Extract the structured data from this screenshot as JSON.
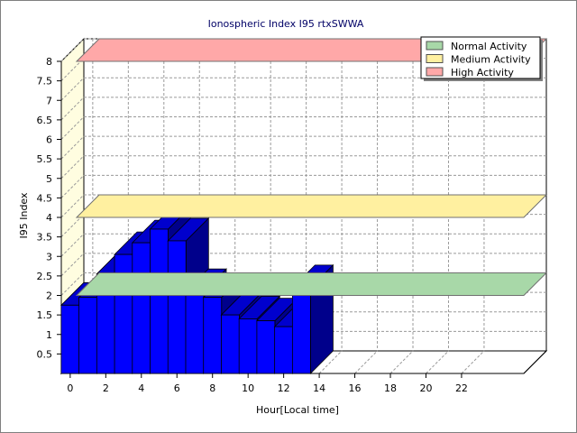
{
  "chart_data": {
    "type": "bar",
    "style": "3d",
    "title": "Ionospheric Index I95 rtxSWWA",
    "xlabel": "Hour[Local time]",
    "ylabel": "I95 Index",
    "xlim": [
      -0.5,
      25.5
    ],
    "ylim": [
      0,
      8
    ],
    "y_ticks": [
      "0.5",
      "1",
      "1.5",
      "2",
      "2.5",
      "3",
      "3.5",
      "4",
      "4.5",
      "5",
      "5.5",
      "6",
      "6.5",
      "7",
      "7.5",
      "8"
    ],
    "x_ticks": [
      "0",
      "2",
      "4",
      "6",
      "8",
      "10",
      "12",
      "14",
      "16",
      "18",
      "20",
      "22"
    ],
    "grid": true,
    "legend_position": "top-right",
    "legend": [
      {
        "label": "Normal Activity",
        "color": "#a8d8a8"
      },
      {
        "label": "Medium Activity",
        "color": "#fff0a0"
      },
      {
        "label": "High Activity",
        "color": "#ffa8a8"
      }
    ],
    "threshold_bands": [
      {
        "name": "Normal Activity",
        "value": 2,
        "color": "#a8d8a8"
      },
      {
        "name": "Medium Activity",
        "value": 4,
        "color": "#fff0a0"
      },
      {
        "name": "High Activity",
        "value": 8,
        "color": "#ffa8a8"
      }
    ],
    "series": [
      {
        "color": "#0000ff",
        "x": [
          0,
          1,
          2,
          3,
          4,
          5,
          6,
          7,
          8,
          9,
          10,
          11,
          12,
          13
        ],
        "values": [
          1.75,
          1.95,
          2.55,
          3.05,
          3.35,
          3.7,
          3.4,
          2.1,
          1.95,
          1.5,
          1.4,
          1.35,
          1.2,
          2.2
        ]
      }
    ]
  }
}
